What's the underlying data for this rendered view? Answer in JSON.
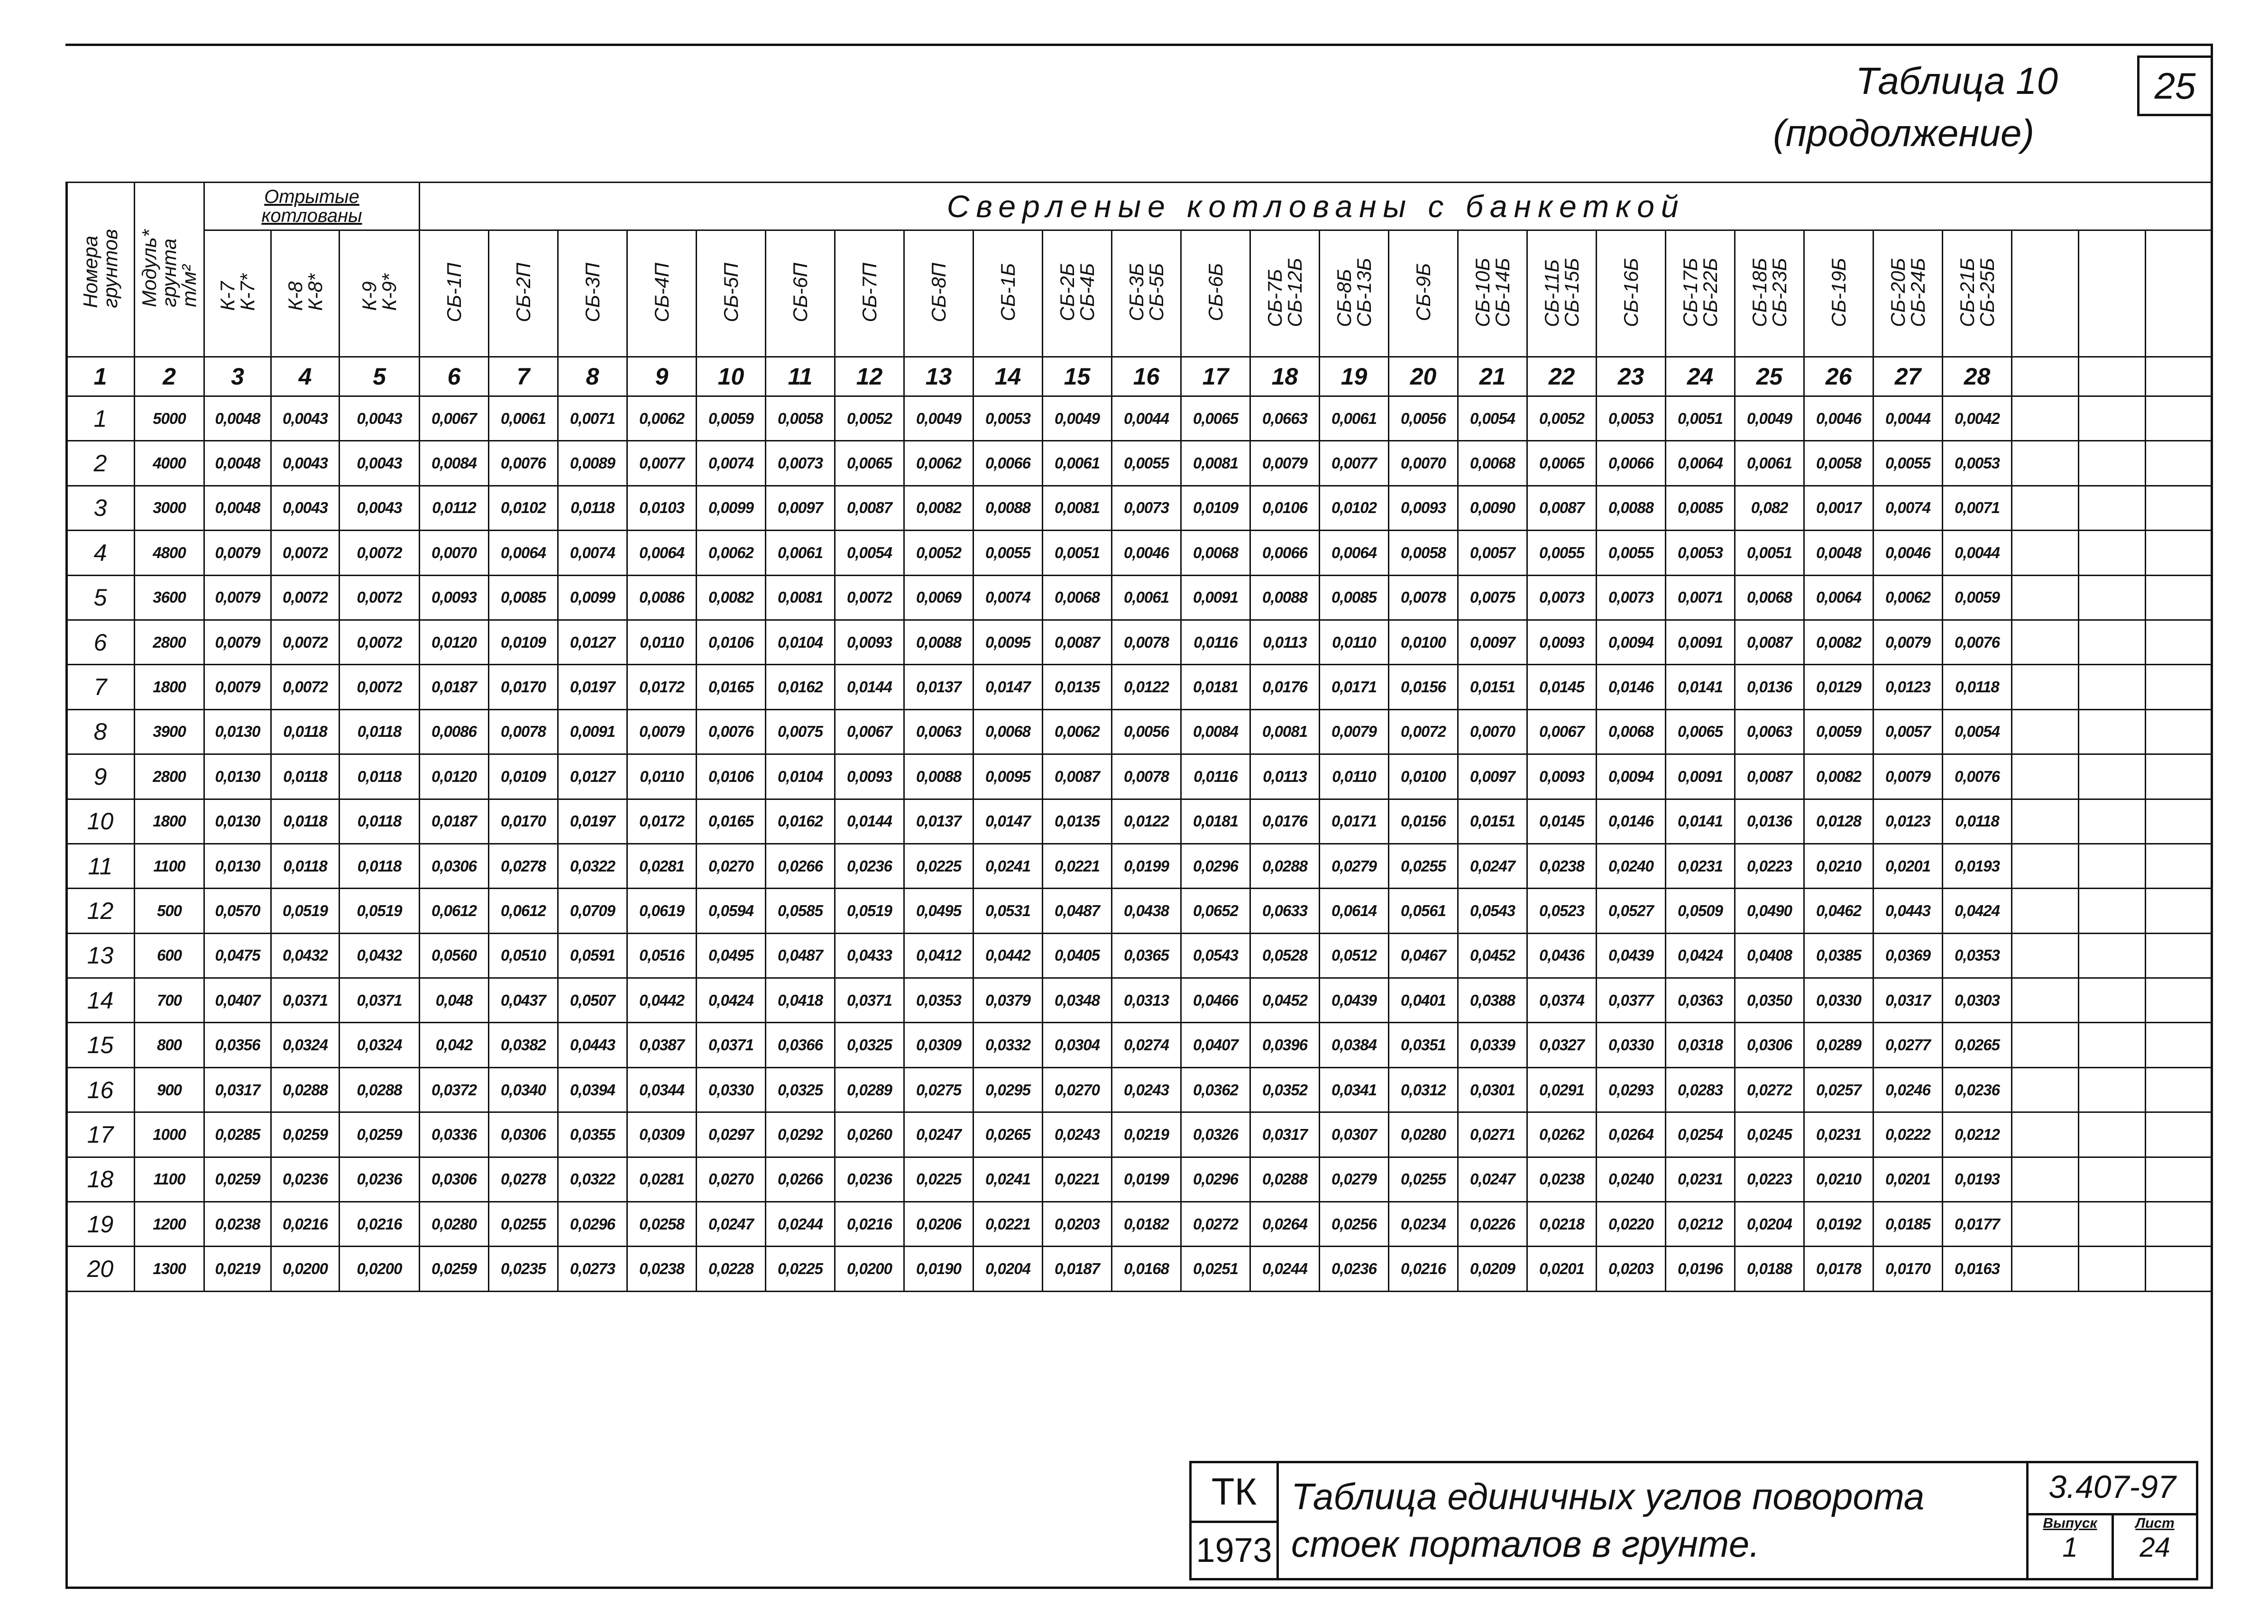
{
  "header": {
    "title": "Таблица 10",
    "subtitle": "(продолжение)",
    "page": "25"
  },
  "table": {
    "group_headers": [
      [
        "Отрытые",
        "котлованы"
      ],
      "Сверленые котлованы с банкеткой"
    ],
    "column_headers": [
      [
        "Номера",
        "грунтов"
      ],
      [
        "Модуль*",
        "грунта",
        "т/м²"
      ],
      [
        "К-7",
        "К-7*"
      ],
      [
        "К-8",
        "К-8*"
      ],
      [
        "К-9",
        "К-9*"
      ],
      [
        "СБ-1П"
      ],
      [
        "СБ-2П"
      ],
      [
        "СБ-3П"
      ],
      [
        "СБ-4П"
      ],
      [
        "СБ-5П"
      ],
      [
        "СБ-6П"
      ],
      [
        "СБ-7П"
      ],
      [
        "СБ-8П"
      ],
      [
        "СБ-1Б"
      ],
      [
        "СБ-2Б",
        "СБ-4Б"
      ],
      [
        "СБ-3Б",
        "СБ-5Б"
      ],
      [
        "СБ-6Б"
      ],
      [
        "СБ-7Б",
        "СБ-12Б"
      ],
      [
        "СБ-8Б",
        "СБ-13Б"
      ],
      [
        "СБ-9Б"
      ],
      [
        "СБ-10Б",
        "СБ-14Б"
      ],
      [
        "СБ-11Б",
        "СБ-15Б"
      ],
      [
        "СБ-16Б"
      ],
      [
        "СБ-17Б",
        "СБ-22Б"
      ],
      [
        "СБ-18Б",
        "СБ-23Б"
      ],
      [
        "СБ-19Б"
      ],
      [
        "СБ-20Б",
        "СБ-24Б"
      ],
      [
        "СБ-21Б",
        "СБ-25Б"
      ]
    ],
    "column_numbers": [
      "1",
      "2",
      "3",
      "4",
      "5",
      "6",
      "7",
      "8",
      "9",
      "10",
      "11",
      "12",
      "13",
      "14",
      "15",
      "16",
      "17",
      "18",
      "19",
      "20",
      "21",
      "22",
      "23",
      "24",
      "25",
      "26",
      "27",
      "28"
    ],
    "rows": [
      [
        "1",
        "5000",
        "0,0048",
        "0,0043",
        "0,0043",
        "0,0067",
        "0,0061",
        "0,0071",
        "0,0062",
        "0,0059",
        "0,0058",
        "0,0052",
        "0,0049",
        "0,0053",
        "0,0049",
        "0,0044",
        "0,0065",
        "0,0663",
        "0,0061",
        "0,0056",
        "0,0054",
        "0,0052",
        "0,0053",
        "0,0051",
        "0,0049",
        "0,0046",
        "0,0044",
        "0,0042"
      ],
      [
        "2",
        "4000",
        "0,0048",
        "0,0043",
        "0,0043",
        "0,0084",
        "0,0076",
        "0,0089",
        "0,0077",
        "0,0074",
        "0,0073",
        "0,0065",
        "0,0062",
        "0,0066",
        "0,0061",
        "0,0055",
        "0,0081",
        "0,0079",
        "0,0077",
        "0,0070",
        "0,0068",
        "0,0065",
        "0,0066",
        "0,0064",
        "0,0061",
        "0,0058",
        "0,0055",
        "0,0053"
      ],
      [
        "3",
        "3000",
        "0,0048",
        "0,0043",
        "0,0043",
        "0,0112",
        "0,0102",
        "0,0118",
        "0,0103",
        "0,0099",
        "0,0097",
        "0,0087",
        "0,0082",
        "0,0088",
        "0,0081",
        "0,0073",
        "0,0109",
        "0,0106",
        "0,0102",
        "0,0093",
        "0,0090",
        "0,0087",
        "0,0088",
        "0,0085",
        "0,082",
        "0,0017",
        "0,0074",
        "0,0071"
      ],
      [
        "4",
        "4800",
        "0,0079",
        "0,0072",
        "0,0072",
        "0,0070",
        "0,0064",
        "0,0074",
        "0,0064",
        "0,0062",
        "0,0061",
        "0,0054",
        "0,0052",
        "0,0055",
        "0,0051",
        "0,0046",
        "0,0068",
        "0,0066",
        "0,0064",
        "0,0058",
        "0,0057",
        "0,0055",
        "0,0055",
        "0,0053",
        "0,0051",
        "0,0048",
        "0,0046",
        "0,0044"
      ],
      [
        "5",
        "3600",
        "0,0079",
        "0,0072",
        "0,0072",
        "0,0093",
        "0,0085",
        "0,0099",
        "0,0086",
        "0,0082",
        "0,0081",
        "0,0072",
        "0,0069",
        "0,0074",
        "0,0068",
        "0,0061",
        "0,0091",
        "0,0088",
        "0,0085",
        "0,0078",
        "0,0075",
        "0,0073",
        "0,0073",
        "0,0071",
        "0,0068",
        "0,0064",
        "0,0062",
        "0,0059"
      ],
      [
        "6",
        "2800",
        "0,0079",
        "0,0072",
        "0,0072",
        "0,0120",
        "0,0109",
        "0,0127",
        "0,0110",
        "0,0106",
        "0,0104",
        "0,0093",
        "0,0088",
        "0,0095",
        "0,0087",
        "0,0078",
        "0,0116",
        "0,0113",
        "0,0110",
        "0,0100",
        "0,0097",
        "0,0093",
        "0,0094",
        "0,0091",
        "0,0087",
        "0,0082",
        "0,0079",
        "0,0076"
      ],
      [
        "7",
        "1800",
        "0,0079",
        "0,0072",
        "0,0072",
        "0,0187",
        "0,0170",
        "0,0197",
        "0,0172",
        "0,0165",
        "0,0162",
        "0,0144",
        "0,0137",
        "0,0147",
        "0,0135",
        "0,0122",
        "0,0181",
        "0,0176",
        "0,0171",
        "0,0156",
        "0,0151",
        "0,0145",
        "0,0146",
        "0,0141",
        "0,0136",
        "0,0129",
        "0,0123",
        "0,0118"
      ],
      [
        "8",
        "3900",
        "0,0130",
        "0,0118",
        "0,0118",
        "0,0086",
        "0,0078",
        "0,0091",
        "0,0079",
        "0,0076",
        "0,0075",
        "0,0067",
        "0,0063",
        "0,0068",
        "0,0062",
        "0,0056",
        "0,0084",
        "0,0081",
        "0,0079",
        "0,0072",
        "0,0070",
        "0,0067",
        "0,0068",
        "0,0065",
        "0,0063",
        "0,0059",
        "0,0057",
        "0,0054"
      ],
      [
        "9",
        "2800",
        "0,0130",
        "0,0118",
        "0,0118",
        "0,0120",
        "0,0109",
        "0,0127",
        "0,0110",
        "0,0106",
        "0,0104",
        "0,0093",
        "0,0088",
        "0,0095",
        "0,0087",
        "0,0078",
        "0,0116",
        "0,0113",
        "0,0110",
        "0,0100",
        "0,0097",
        "0,0093",
        "0,0094",
        "0,0091",
        "0,0087",
        "0,0082",
        "0,0079",
        "0,0076"
      ],
      [
        "10",
        "1800",
        "0,0130",
        "0,0118",
        "0,0118",
        "0,0187",
        "0,0170",
        "0,0197",
        "0,0172",
        "0,0165",
        "0,0162",
        "0,0144",
        "0,0137",
        "0,0147",
        "0,0135",
        "0,0122",
        "0,0181",
        "0,0176",
        "0,0171",
        "0,0156",
        "0,0151",
        "0,0145",
        "0,0146",
        "0,0141",
        "0,0136",
        "0,0128",
        "0,0123",
        "0,0118"
      ],
      [
        "11",
        "1100",
        "0,0130",
        "0,0118",
        "0,0118",
        "0,0306",
        "0,0278",
        "0,0322",
        "0,0281",
        "0,0270",
        "0,0266",
        "0,0236",
        "0,0225",
        "0,0241",
        "0,0221",
        "0,0199",
        "0,0296",
        "0,0288",
        "0,0279",
        "0,0255",
        "0,0247",
        "0,0238",
        "0,0240",
        "0,0231",
        "0,0223",
        "0,0210",
        "0,0201",
        "0,0193"
      ],
      [
        "12",
        "500",
        "0,0570",
        "0,0519",
        "0,0519",
        "0,0612",
        "0,0612",
        "0,0709",
        "0,0619",
        "0,0594",
        "0,0585",
        "0,0519",
        "0,0495",
        "0,0531",
        "0,0487",
        "0,0438",
        "0,0652",
        "0,0633",
        "0,0614",
        "0,0561",
        "0,0543",
        "0,0523",
        "0,0527",
        "0,0509",
        "0,0490",
        "0,0462",
        "0,0443",
        "0,0424"
      ],
      [
        "13",
        "600",
        "0,0475",
        "0,0432",
        "0,0432",
        "0,0560",
        "0,0510",
        "0,0591",
        "0,0516",
        "0,0495",
        "0,0487",
        "0,0433",
        "0,0412",
        "0,0442",
        "0,0405",
        "0,0365",
        "0,0543",
        "0,0528",
        "0,0512",
        "0,0467",
        "0,0452",
        "0,0436",
        "0,0439",
        "0,0424",
        "0,0408",
        "0,0385",
        "0,0369",
        "0,0353"
      ],
      [
        "14",
        "700",
        "0,0407",
        "0,0371",
        "0,0371",
        "0,048",
        "0,0437",
        "0,0507",
        "0,0442",
        "0,0424",
        "0,0418",
        "0,0371",
        "0,0353",
        "0,0379",
        "0,0348",
        "0,0313",
        "0,0466",
        "0,0452",
        "0,0439",
        "0,0401",
        "0,0388",
        "0,0374",
        "0,0377",
        "0,0363",
        "0,0350",
        "0,0330",
        "0,0317",
        "0,0303"
      ],
      [
        "15",
        "800",
        "0,0356",
        "0,0324",
        "0,0324",
        "0,042",
        "0,0382",
        "0,0443",
        "0,0387",
        "0,0371",
        "0,0366",
        "0,0325",
        "0,0309",
        "0,0332",
        "0,0304",
        "0,0274",
        "0,0407",
        "0,0396",
        "0,0384",
        "0,0351",
        "0,0339",
        "0,0327",
        "0,0330",
        "0,0318",
        "0,0306",
        "0,0289",
        "0,0277",
        "0,0265"
      ],
      [
        "16",
        "900",
        "0,0317",
        "0,0288",
        "0,0288",
        "0,0372",
        "0,0340",
        "0,0394",
        "0,0344",
        "0,0330",
        "0,0325",
        "0,0289",
        "0,0275",
        "0,0295",
        "0,0270",
        "0,0243",
        "0,0362",
        "0,0352",
        "0,0341",
        "0,0312",
        "0,0301",
        "0,0291",
        "0,0293",
        "0,0283",
        "0,0272",
        "0,0257",
        "0,0246",
        "0,0236"
      ],
      [
        "17",
        "1000",
        "0,0285",
        "0,0259",
        "0,0259",
        "0,0336",
        "0,0306",
        "0,0355",
        "0,0309",
        "0,0297",
        "0,0292",
        "0,0260",
        "0,0247",
        "0,0265",
        "0,0243",
        "0,0219",
        "0,0326",
        "0,0317",
        "0,0307",
        "0,0280",
        "0,0271",
        "0,0262",
        "0,0264",
        "0,0254",
        "0,0245",
        "0,0231",
        "0,0222",
        "0,0212"
      ],
      [
        "18",
        "1100",
        "0,0259",
        "0,0236",
        "0,0236",
        "0,0306",
        "0,0278",
        "0,0322",
        "0,0281",
        "0,0270",
        "0,0266",
        "0,0236",
        "0,0225",
        "0,0241",
        "0,0221",
        "0,0199",
        "0,0296",
        "0,0288",
        "0,0279",
        "0,0255",
        "0,0247",
        "0,0238",
        "0,0240",
        "0,0231",
        "0,0223",
        "0,0210",
        "0,0201",
        "0,0193"
      ],
      [
        "19",
        "1200",
        "0,0238",
        "0,0216",
        "0,0216",
        "0,0280",
        "0,0255",
        "0,0296",
        "0,0258",
        "0,0247",
        "0,0244",
        "0,0216",
        "0,0206",
        "0,0221",
        "0,0203",
        "0,0182",
        "0,0272",
        "0,0264",
        "0,0256",
        "0,0234",
        "0,0226",
        "0,0218",
        "0,0220",
        "0,0212",
        "0,0204",
        "0,0192",
        "0,0185",
        "0,0177"
      ],
      [
        "20",
        "1300",
        "0,0219",
        "0,0200",
        "0,0200",
        "0,0259",
        "0,0235",
        "0,0273",
        "0,0238",
        "0,0228",
        "0,0225",
        "0,0200",
        "0,0190",
        "0,0204",
        "0,0187",
        "0,0168",
        "0,0251",
        "0,0244",
        "0,0236",
        "0,0216",
        "0,0209",
        "0,0201",
        "0,0203",
        "0,0196",
        "0,0188",
        "0,0178",
        "0,0170",
        "0,0163"
      ]
    ]
  },
  "stamp": {
    "code": "ТК",
    "year": "1973",
    "title": [
      "Таблица единичных углов поворота",
      "стоек порталов в грунте."
    ],
    "document": "3.407-97",
    "issue_label": "Выпуск",
    "issue": "1",
    "sheet_label": "Лист",
    "sheet": "24"
  }
}
